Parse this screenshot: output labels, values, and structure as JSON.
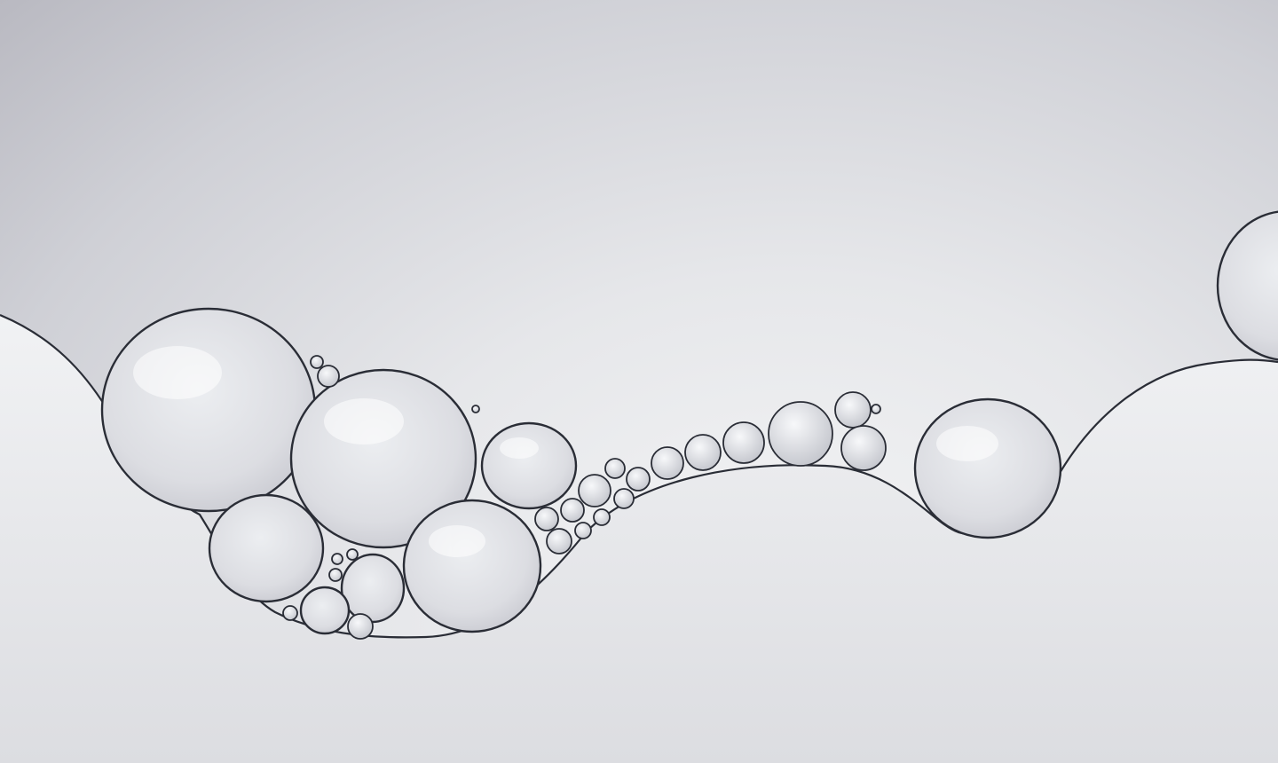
{
  "image": {
    "subject": "oil-droplets-on-water-macro",
    "colors": {
      "background_light": "#f1f2f4",
      "background_mid": "#d6d7dc",
      "background_dark": "#b8b8c0",
      "outline": "#2a2d36",
      "bubble_fill": "#e3e4e8",
      "highlight": "#ffffff"
    }
  }
}
